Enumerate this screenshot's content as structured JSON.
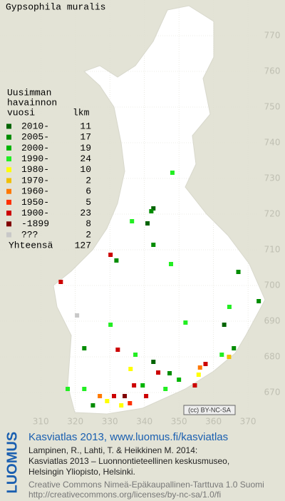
{
  "map": {
    "title": "Gypsophila muralis",
    "xlim": [
      298.2,
      380.7
    ],
    "ylim": [
      660,
      780
    ],
    "xticks": [
      310,
      320,
      330,
      340,
      350,
      360,
      370
    ],
    "yticks": [
      670,
      680,
      690,
      700,
      710,
      720,
      730,
      740,
      750,
      760,
      770
    ],
    "license_badge": "(cc) BY-NC-SA"
  },
  "legend": {
    "heading": [
      "Uusimman",
      "havainnon",
      "vuosi"
    ],
    "count_heading": "lkm",
    "rows": [
      {
        "label": "2010-",
        "count": 11,
        "color": "#006400",
        "points": [
          [
            342.6,
            721.6
          ],
          [
            340.9,
            717.4
          ],
          [
            363.1,
            689.0
          ],
          [
            342.6,
            678.6
          ]
        ]
      },
      {
        "label": "2005-",
        "count": 17,
        "color": "#008c00",
        "points": [
          [
            342.0,
            720.8
          ],
          [
            342.6,
            711.4
          ],
          [
            331.9,
            707.0
          ],
          [
            367.2,
            703.8
          ],
          [
            373.1,
            695.6
          ],
          [
            322.6,
            682.4
          ],
          [
            365.9,
            682.4
          ],
          [
            347.3,
            675.4
          ],
          [
            325.1,
            666.4
          ]
        ]
      },
      {
        "label": "2000-",
        "count": 19,
        "color": "#00b400",
        "points": [
          [
            339.5,
            672.0
          ],
          [
            350.0,
            673.6
          ]
        ]
      },
      {
        "label": "1990-",
        "count": 24,
        "color": "#22ee22",
        "points": [
          [
            348.1,
            731.6
          ],
          [
            336.4,
            718.0
          ],
          [
            347.7,
            706.0
          ],
          [
            364.6,
            694.0
          ],
          [
            330.2,
            689.0
          ],
          [
            351.9,
            689.6
          ],
          [
            337.4,
            680.6
          ],
          [
            362.4,
            680.6
          ],
          [
            346.1,
            671.0
          ],
          [
            322.6,
            671.0
          ],
          [
            317.8,
            671.0
          ]
        ]
      },
      {
        "label": "1980-",
        "count": 10,
        "color": "#ffff00",
        "points": [
          [
            336.0,
            676.6
          ],
          [
            355.7,
            675.0
          ],
          [
            329.2,
            667.6
          ],
          [
            333.3,
            666.4
          ]
        ]
      },
      {
        "label": "1970-",
        "count": 2,
        "color": "#f0c000",
        "points": [
          [
            364.5,
            680.0
          ]
        ]
      },
      {
        "label": "1960-",
        "count": 6,
        "color": "#ff7800",
        "points": [
          [
            327.1,
            669.0
          ],
          [
            356.1,
            677.0
          ]
        ]
      },
      {
        "label": "1950-",
        "count": 5,
        "color": "#ff3000",
        "points": [
          [
            335.8,
            667.0
          ]
        ]
      },
      {
        "label": "1900-",
        "count": 23,
        "color": "#cc0000",
        "points": [
          [
            330.2,
            708.6
          ],
          [
            315.8,
            701.0
          ],
          [
            332.3,
            682.0
          ],
          [
            357.7,
            678.0
          ],
          [
            354.6,
            672.0
          ],
          [
            337.0,
            672.0
          ],
          [
            331.2,
            669.0
          ],
          [
            340.5,
            669.0
          ],
          [
            344.0,
            675.6
          ]
        ]
      },
      {
        "label": "-1899",
        "count": 8,
        "color": "#800000",
        "points": [
          [
            334.3,
            669.0
          ]
        ]
      },
      {
        "label": "???",
        "count": 2,
        "color": "#c8c8c8",
        "points": [
          [
            320.5,
            691.6
          ]
        ]
      }
    ],
    "total_label": "Yhteensä",
    "total": 127
  },
  "footer": {
    "brand": "LUOMUS",
    "headline": "Kasviatlas 2013, www.luomus.fi/kasviatlas",
    "citation": [
      "Lampinen, R., Lahti, T. & Heikkinen M. 2014:",
      "Kasviatlas 2013 – Luonnontieteellinen keskusmuseo,",
      "Helsingin Yliopisto, Helsinki."
    ],
    "license": [
      "Creative Commons Nimeä-Epäkaupallinen-Tarttuva 1.0 Suomi",
      "http://creativecommons.org/licenses/by-nc-sa/1.0/fi"
    ]
  }
}
